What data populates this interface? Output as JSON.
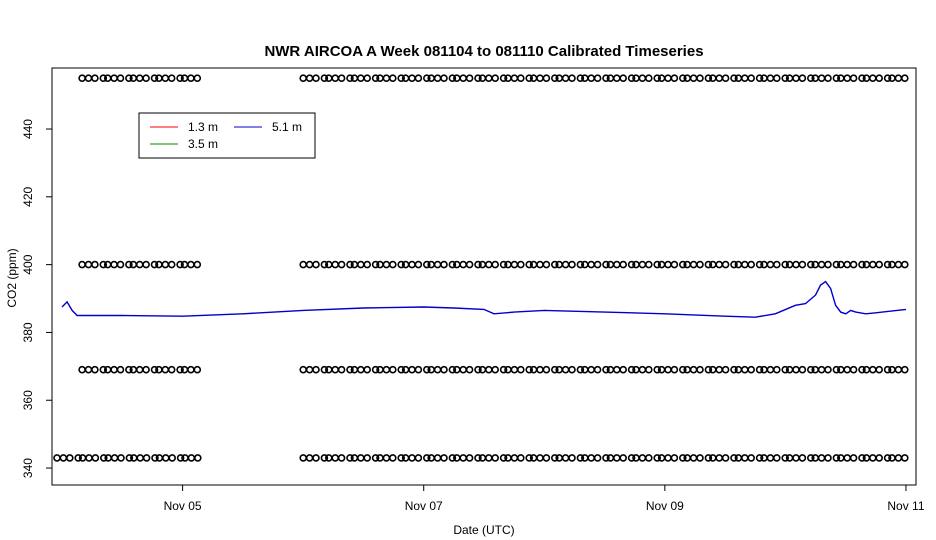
{
  "chart_data": {
    "type": "line",
    "title": "NWR AIRCOA A  Week 081104 to 081110  Calibrated Timeseries",
    "xlabel": "Date (UTC)",
    "ylabel": "CO2 (ppm)",
    "xlim": [
      "2008-11-03T22:00",
      "2008-11-11T02:00"
    ],
    "ylim": [
      335,
      458
    ],
    "x_ticks": [
      {
        "date": "2008-11-05",
        "label": "Nov 05"
      },
      {
        "date": "2008-11-07",
        "label": "Nov 07"
      },
      {
        "date": "2008-11-09",
        "label": "Nov 09"
      },
      {
        "date": "2008-11-11",
        "label": "Nov 11"
      }
    ],
    "y_ticks": [
      340,
      360,
      380,
      400,
      420,
      440
    ],
    "grid": false,
    "legend": {
      "placement": "top-left",
      "entries": [
        {
          "label": "1.3 m",
          "color": "#ff0000"
        },
        {
          "label": "5.1 m",
          "color": "#0000cc"
        },
        {
          "label": "3.5 m",
          "color": "#008800"
        }
      ]
    },
    "series": [
      {
        "name": "5.1 m",
        "color": "#0000cc",
        "x": [
          "2008-11-04T00:00",
          "2008-11-04T01:00",
          "2008-11-04T02:00",
          "2008-11-04T03:00",
          "2008-11-04T06:00",
          "2008-11-04T12:00",
          "2008-11-05T00:00",
          "2008-11-05T12:00",
          "2008-11-06T00:00",
          "2008-11-06T12:00",
          "2008-11-07T00:00",
          "2008-11-07T06:00",
          "2008-11-07T12:00",
          "2008-11-07T14:00",
          "2008-11-07T18:00",
          "2008-11-08T00:00",
          "2008-11-08T12:00",
          "2008-11-09T00:00",
          "2008-11-09T12:00",
          "2008-11-09T18:00",
          "2008-11-09T22:00",
          "2008-11-10T02:00",
          "2008-11-10T04:00",
          "2008-11-10T06:00",
          "2008-11-10T07:00",
          "2008-11-10T08:00",
          "2008-11-10T09:00",
          "2008-11-10T10:00",
          "2008-11-10T11:00",
          "2008-11-10T12:00",
          "2008-11-10T13:00",
          "2008-11-10T14:00",
          "2008-11-10T16:00",
          "2008-11-10T18:00",
          "2008-11-11T00:00"
        ],
        "y": [
          387.5,
          389.0,
          386.5,
          385.0,
          385.0,
          385.0,
          384.8,
          385.5,
          386.5,
          387.2,
          387.5,
          387.2,
          386.8,
          385.5,
          386.0,
          386.5,
          386.0,
          385.5,
          384.8,
          384.5,
          385.5,
          388.0,
          388.5,
          391.0,
          394.0,
          395.0,
          393.0,
          388.0,
          386.0,
          385.5,
          386.5,
          386.0,
          385.5,
          385.8,
          386.8
        ]
      }
    ],
    "flag_rows": [
      {
        "y": 455,
        "label": "o"
      },
      {
        "y": 400,
        "label": "o"
      },
      {
        "y": 369,
        "label": "o"
      },
      {
        "y": 343,
        "label": "o"
      }
    ],
    "flag_segments": [
      {
        "x": [
          "2008-11-04T04:00",
          "2008-11-05T04:00"
        ],
        "rows": [
          455,
          400,
          369
        ]
      },
      {
        "x": [
          "2008-11-03T23:00",
          "2008-11-05T04:00"
        ],
        "rows": [
          343
        ]
      },
      {
        "x": [
          "2008-11-06T00:00",
          "2008-11-11T00:00"
        ],
        "rows": [
          455,
          400,
          369,
          343
        ]
      }
    ]
  }
}
